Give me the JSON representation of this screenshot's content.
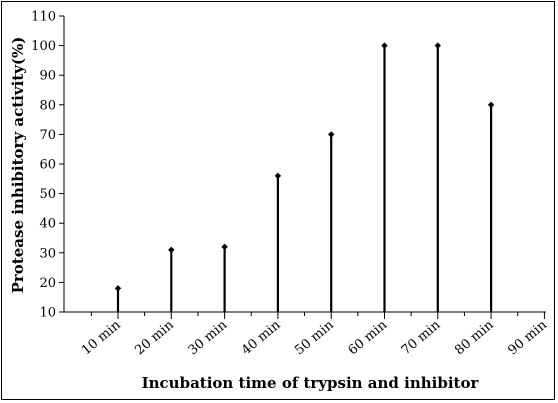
{
  "chart_data": {
    "type": "stem",
    "categories": [
      "10 min",
      "20 min",
      "30 min",
      "40 min",
      "50 min",
      "60 min",
      "70 min",
      "80 min",
      "90 min"
    ],
    "values": [
      18,
      31,
      32,
      56,
      70,
      100,
      100,
      80,
      null
    ],
    "xlabel": "Incubation time of trypsin and inhibitor",
    "ylabel": "Protease inhibitory activity(%)",
    "ylim": [
      10,
      110
    ],
    "yticks": [
      10,
      20,
      30,
      40,
      50,
      60,
      70,
      80,
      90,
      100,
      110
    ],
    "grid": false,
    "colors": {
      "stem": "#000000",
      "axis": "#000000"
    }
  }
}
